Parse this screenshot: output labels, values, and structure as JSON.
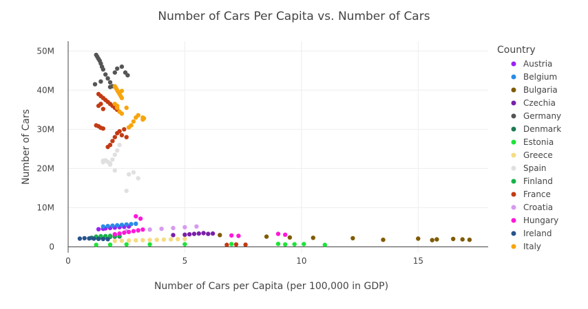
{
  "chart_data": {
    "type": "scatter",
    "title": "Number of Cars Per Capita vs. Number of Cars",
    "xlabel": "Number of Cars per Capita (per 100,000 in GDP)",
    "ylabel": "Number of Cars",
    "xlim": [
      0,
      18
    ],
    "ylim": [
      -1500000,
      52500000
    ],
    "x_ticks": [
      {
        "value": 0,
        "label": "0"
      },
      {
        "value": 5,
        "label": "5"
      },
      {
        "value": 10,
        "label": "10"
      },
      {
        "value": 15,
        "label": "15"
      }
    ],
    "y_ticks": [
      {
        "value": 0,
        "label": "0"
      },
      {
        "value": 10000000,
        "label": "10M"
      },
      {
        "value": 20000000,
        "label": "20M"
      },
      {
        "value": 30000000,
        "label": "30M"
      },
      {
        "value": 40000000,
        "label": "40M"
      },
      {
        "value": 50000000,
        "label": "50M"
      }
    ],
    "grid": true,
    "legend_title": "Country",
    "legend_position": "right",
    "series": [
      {
        "name": "Austria",
        "color": "#9b22f0",
        "x": [
          1.3,
          1.5,
          1.6,
          1.8,
          2.0,
          2.2,
          2.4,
          2.6
        ],
        "y": [
          4500000,
          4600000,
          4700000,
          4800000,
          4900000,
          5000000,
          5100000,
          5200000
        ]
      },
      {
        "name": "Belgium",
        "color": "#2a8ae8",
        "x": [
          1.5,
          1.7,
          1.9,
          2.1,
          2.3,
          2.5,
          2.7,
          2.9
        ],
        "y": [
          5200000,
          5300000,
          5400000,
          5500000,
          5600000,
          5700000,
          5800000,
          5900000
        ]
      },
      {
        "name": "Bulgaria",
        "color": "#7f5b00",
        "x": [
          6.5,
          8.5,
          9.5,
          10.5,
          12.2,
          13.5,
          15.0,
          15.6,
          15.8,
          16.5,
          16.9,
          17.2
        ],
        "y": [
          3000000,
          2600000,
          2400000,
          2300000,
          2200000,
          1800000,
          2100000,
          1700000,
          1900000,
          2000000,
          1900000,
          1800000
        ]
      },
      {
        "name": "Czechia",
        "color": "#7a1fa8",
        "x": [
          4.5,
          5.0,
          5.2,
          5.4,
          5.6,
          5.8,
          6.0,
          6.2
        ],
        "y": [
          3000000,
          3100000,
          3200000,
          3300000,
          3400000,
          3500000,
          3300000,
          3400000
        ]
      },
      {
        "name": "Germany",
        "color": "#555555",
        "x": [
          1.2,
          1.25,
          1.3,
          1.35,
          1.4,
          1.45,
          1.5,
          1.6,
          1.7,
          1.8,
          1.9,
          2.0,
          2.1,
          2.3,
          2.45,
          2.55,
          1.15,
          1.4,
          1.8
        ],
        "y": [
          49000000,
          48500000,
          48000000,
          47500000,
          46800000,
          46000000,
          45300000,
          44000000,
          43000000,
          42000000,
          41000000,
          44500000,
          45500000,
          46000000,
          44500000,
          43800000,
          41500000,
          42200000,
          40800000
        ]
      },
      {
        "name": "Denmark",
        "color": "#1f7a52",
        "x": [
          1.0,
          1.2,
          1.4,
          1.6,
          1.8,
          2.0,
          2.2
        ],
        "y": [
          2300000,
          2400000,
          2450000,
          2500000,
          2550000,
          2600000,
          2650000
        ]
      },
      {
        "name": "Estonia",
        "color": "#1ee33a",
        "x": [
          1.2,
          1.8,
          2.5,
          3.5,
          5.0,
          7.0,
          9.0,
          9.3,
          9.7,
          10.1,
          11.0
        ],
        "y": [
          500000,
          550000,
          600000,
          620000,
          650000,
          700000,
          750000,
          600000,
          650000,
          700000,
          500000
        ]
      },
      {
        "name": "Greece",
        "color": "#f5dc82",
        "x": [
          2.0,
          2.3,
          2.6,
          2.9,
          3.2,
          3.5,
          3.8,
          4.1,
          4.4,
          4.7,
          5.0
        ],
        "y": [
          1500000,
          1550000,
          1600000,
          1650000,
          1700000,
          1750000,
          1800000,
          1850000,
          1900000,
          1950000,
          2000000
        ]
      },
      {
        "name": "Spain",
        "color": "#e0e0e0",
        "x": [
          1.5,
          1.6,
          1.7,
          1.8,
          1.9,
          2.0,
          2.1,
          2.2,
          2.5,
          2.6,
          2.8,
          3.0,
          1.5,
          1.8,
          2.0
        ],
        "y": [
          22000000,
          22100000,
          21700000,
          21300000,
          22300000,
          23500000,
          24600000,
          26000000,
          14300000,
          18500000,
          19000000,
          17500000,
          21600000,
          21000000,
          19500000
        ]
      },
      {
        "name": "Finland",
        "color": "#17b34a",
        "x": [
          1.2,
          1.4,
          1.6,
          1.8,
          2.0,
          2.2
        ],
        "y": [
          2600000,
          2700000,
          2750000,
          2800000,
          2850000,
          2900000
        ]
      },
      {
        "name": "France",
        "color": "#c23b14",
        "x": [
          1.3,
          1.4,
          1.5,
          1.6,
          1.7,
          1.8,
          1.9,
          2.0,
          2.1,
          1.3,
          1.4,
          1.5,
          1.7,
          1.8,
          1.9,
          2.0,
          2.1,
          2.2,
          2.3,
          2.4,
          2.5,
          1.2,
          1.3,
          1.4,
          1.5,
          6.8,
          7.2,
          7.6
        ],
        "y": [
          39000000,
          38500000,
          38000000,
          37500000,
          37000000,
          36500000,
          36000000,
          35500000,
          35000000,
          36000000,
          36500000,
          35200000,
          25500000,
          26000000,
          27000000,
          28000000,
          29000000,
          29500000,
          28500000,
          30000000,
          28000000,
          31000000,
          30800000,
          30400000,
          30200000,
          500000,
          600000,
          550000
        ]
      },
      {
        "name": "Croatia",
        "color": "#d69bf0",
        "x": [
          2.5,
          3.0,
          3.5,
          4.0,
          4.5,
          5.0,
          5.5
        ],
        "y": [
          4000000,
          4200000,
          4400000,
          4600000,
          4800000,
          5000000,
          5200000
        ]
      },
      {
        "name": "Hungary",
        "color": "#ff18d8",
        "x": [
          2.0,
          2.2,
          2.4,
          2.6,
          2.8,
          3.0,
          3.2,
          2.9,
          3.1,
          7.0,
          7.3,
          9.0,
          9.3
        ],
        "y": [
          3200000,
          3400000,
          3600000,
          3800000,
          4000000,
          4200000,
          4400000,
          7800000,
          7200000,
          2900000,
          2800000,
          3300000,
          3100000
        ]
      },
      {
        "name": "Ireland",
        "color": "#27548c",
        "x": [
          0.5,
          0.7,
          0.9,
          1.1,
          1.3,
          1.5,
          1.7
        ],
        "y": [
          2100000,
          2200000,
          2150000,
          2100000,
          2050000,
          2000000,
          1950000
        ]
      },
      {
        "name": "Italy",
        "color": "#f7a40e",
        "x": [
          2.0,
          2.05,
          2.1,
          2.15,
          2.2,
          2.25,
          2.3,
          2.0,
          2.1,
          2.2,
          2.3,
          2.6,
          2.7,
          2.8,
          2.9,
          3.0,
          3.2,
          3.2,
          3.25,
          2.1,
          2.3,
          2.5
        ],
        "y": [
          41000000,
          40500000,
          40000000,
          39500000,
          39000000,
          38500000,
          38000000,
          36500000,
          35500000,
          34500000,
          34000000,
          30500000,
          31000000,
          32000000,
          33000000,
          33600000,
          33000000,
          32500000,
          32800000,
          36000000,
          39800000,
          35500000
        ]
      }
    ]
  }
}
